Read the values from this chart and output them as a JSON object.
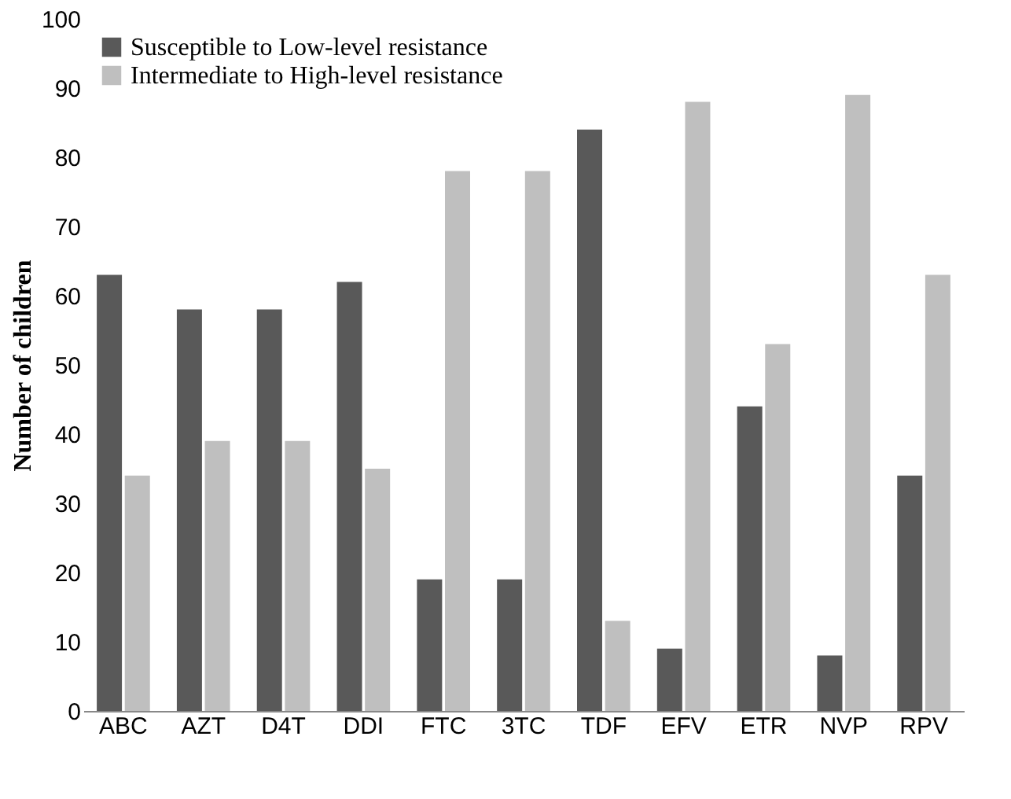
{
  "chart_data": {
    "type": "bar",
    "ylabel": "Number of children",
    "categories": [
      "ABC",
      "AZT",
      "D4T",
      "DDI",
      "FTC",
      "3TC",
      "TDF",
      "EFV",
      "ETR",
      "NVP",
      "RPV"
    ],
    "series": [
      {
        "name": "Susceptible to Low-level resistance",
        "color": "#595959",
        "values": [
          63,
          58,
          58,
          62,
          19,
          19,
          84,
          9,
          44,
          8,
          34
        ]
      },
      {
        "name": "Intermediate to High-level resistance",
        "color": "#bfbfbf",
        "values": [
          34,
          39,
          39,
          35,
          78,
          78,
          13,
          88,
          53,
          89,
          63
        ]
      }
    ],
    "ylim": [
      0,
      100
    ],
    "yticks": [
      0,
      10,
      20,
      30,
      40,
      50,
      60,
      70,
      80,
      90,
      100
    ],
    "grid": false,
    "legend": "top left"
  }
}
